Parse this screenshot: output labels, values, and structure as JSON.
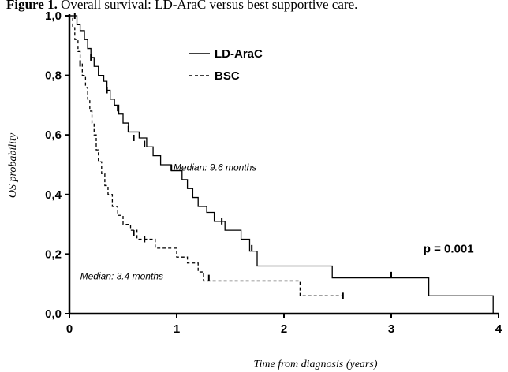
{
  "caption": {
    "label": "Figure 1.",
    "text": "Overall survival: LD-AraC versus best supportive care."
  },
  "chart_data": {
    "type": "line",
    "title": "",
    "xlabel": "Time from diagnosis (years)",
    "ylabel": "OS probability",
    "xlim": [
      0,
      4
    ],
    "ylim": [
      0,
      1
    ],
    "x_ticks": [
      0,
      1,
      2,
      3,
      4
    ],
    "x_tick_labels": [
      "0",
      "1",
      "2",
      "3",
      "4"
    ],
    "y_ticks": [
      0,
      0.2,
      0.4,
      0.6,
      0.8,
      1.0
    ],
    "y_tick_labels": [
      "0,0",
      "0,2",
      "0,4",
      "0,6",
      "0,8",
      "1,0"
    ],
    "grid": false,
    "legend_position": "top-center",
    "series": [
      {
        "name": "LD-AraC",
        "style": "solid",
        "steps": [
          [
            0,
            1.0
          ],
          [
            0.07,
            0.97
          ],
          [
            0.1,
            0.95
          ],
          [
            0.14,
            0.92
          ],
          [
            0.17,
            0.89
          ],
          [
            0.2,
            0.86
          ],
          [
            0.23,
            0.83
          ],
          [
            0.27,
            0.8
          ],
          [
            0.32,
            0.78
          ],
          [
            0.35,
            0.75
          ],
          [
            0.38,
            0.72
          ],
          [
            0.42,
            0.7
          ],
          [
            0.46,
            0.67
          ],
          [
            0.5,
            0.64
          ],
          [
            0.55,
            0.61
          ],
          [
            0.65,
            0.59
          ],
          [
            0.72,
            0.56
          ],
          [
            0.78,
            0.53
          ],
          [
            0.85,
            0.5
          ],
          [
            0.95,
            0.48
          ],
          [
            1.05,
            0.45
          ],
          [
            1.1,
            0.42
          ],
          [
            1.15,
            0.39
          ],
          [
            1.2,
            0.36
          ],
          [
            1.28,
            0.34
          ],
          [
            1.35,
            0.31
          ],
          [
            1.45,
            0.28
          ],
          [
            1.6,
            0.25
          ],
          [
            1.68,
            0.21
          ],
          [
            1.75,
            0.16
          ],
          [
            2.45,
            0.12
          ],
          [
            3.35,
            0.06
          ],
          [
            3.95,
            0.0
          ]
        ],
        "censor_marks": [
          [
            0.05,
            1.0
          ],
          [
            0.2,
            0.86
          ],
          [
            0.35,
            0.75
          ],
          [
            0.45,
            0.69
          ],
          [
            0.55,
            0.62
          ],
          [
            0.6,
            0.59
          ],
          [
            0.7,
            0.57
          ],
          [
            0.95,
            0.49
          ],
          [
            1.42,
            0.31
          ],
          [
            1.7,
            0.22
          ],
          [
            3.0,
            0.13
          ]
        ]
      },
      {
        "name": "BSC",
        "style": "dashed",
        "steps": [
          [
            0,
            1.0
          ],
          [
            0.03,
            0.96
          ],
          [
            0.05,
            0.92
          ],
          [
            0.08,
            0.88
          ],
          [
            0.1,
            0.84
          ],
          [
            0.12,
            0.8
          ],
          [
            0.15,
            0.76
          ],
          [
            0.17,
            0.72
          ],
          [
            0.19,
            0.68
          ],
          [
            0.21,
            0.64
          ],
          [
            0.23,
            0.6
          ],
          [
            0.25,
            0.55
          ],
          [
            0.27,
            0.51
          ],
          [
            0.3,
            0.47
          ],
          [
            0.33,
            0.43
          ],
          [
            0.36,
            0.4
          ],
          [
            0.4,
            0.36
          ],
          [
            0.45,
            0.33
          ],
          [
            0.5,
            0.3
          ],
          [
            0.57,
            0.28
          ],
          [
            0.63,
            0.25
          ],
          [
            0.7,
            0.25
          ],
          [
            0.8,
            0.22
          ],
          [
            1.0,
            0.19
          ],
          [
            1.1,
            0.17
          ],
          [
            1.2,
            0.14
          ],
          [
            1.25,
            0.11
          ],
          [
            2.15,
            0.06
          ],
          [
            2.55,
            0.06
          ]
        ],
        "censor_marks": [
          [
            0.1,
            0.84
          ],
          [
            0.6,
            0.27
          ],
          [
            0.7,
            0.25
          ],
          [
            1.3,
            0.12
          ],
          [
            2.55,
            0.06
          ]
        ]
      }
    ],
    "annotations": [
      {
        "text": "Median: 9.6 months",
        "x": 0.97,
        "y": 0.48
      },
      {
        "text": "Median: 3.4 months",
        "x": 0.1,
        "y": 0.115
      },
      {
        "text": "p = 0.001",
        "x": 3.3,
        "y": 0.205
      }
    ]
  }
}
